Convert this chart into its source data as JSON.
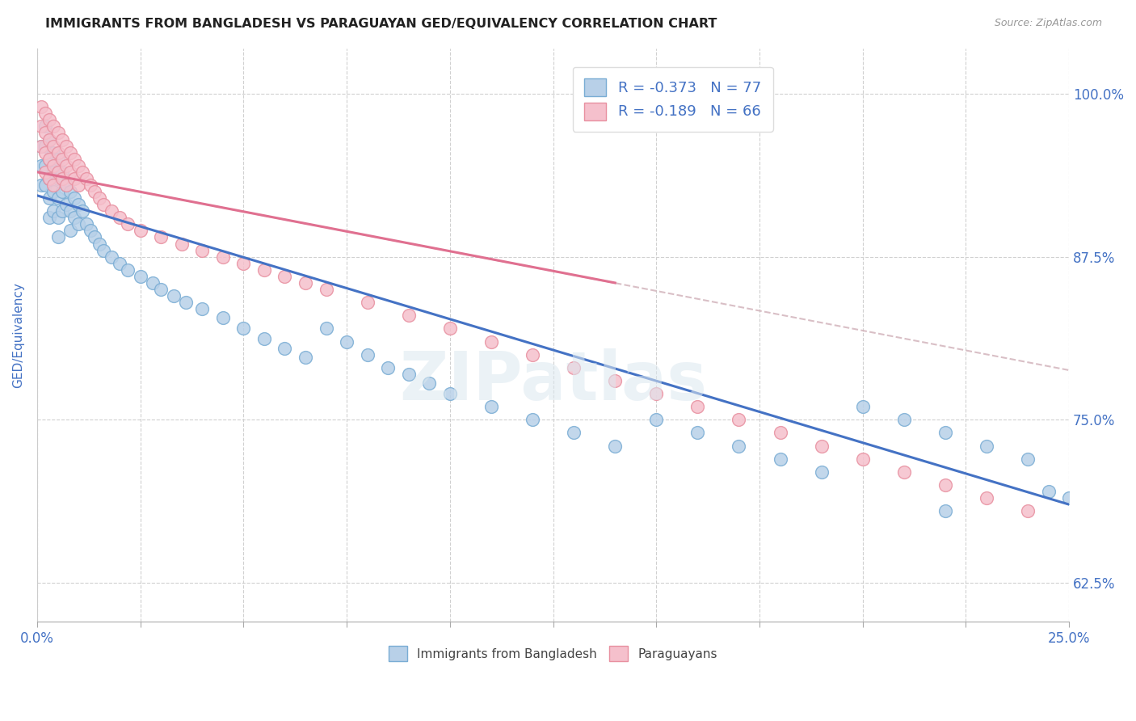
{
  "title": "IMMIGRANTS FROM BANGLADESH VS PARAGUAYAN GED/EQUIVALENCY CORRELATION CHART",
  "source": "Source: ZipAtlas.com",
  "ylabel": "GED/Equivalency",
  "legend_blue_R": "-0.373",
  "legend_blue_N": "77",
  "legend_pink_R": "-0.189",
  "legend_pink_N": "66",
  "legend_label_blue": "Immigrants from Bangladesh",
  "legend_label_pink": "Paraguayans",
  "blue_color": "#b8d0e8",
  "blue_edge": "#7aadd4",
  "pink_color": "#f5c0cc",
  "pink_edge": "#e890a0",
  "blue_line_color": "#4472c4",
  "pink_line_color": "#e07090",
  "dashed_line_color": "#d0b0b8",
  "title_color": "#222222",
  "axis_label_color": "#4472c4",
  "text_color": "#4472c4",
  "xmin": 0.0,
  "xmax": 0.25,
  "ymin": 0.595,
  "ymax": 1.035,
  "blue_scatter_x": [
    0.001,
    0.001,
    0.001,
    0.002,
    0.002,
    0.002,
    0.002,
    0.003,
    0.003,
    0.003,
    0.003,
    0.003,
    0.004,
    0.004,
    0.004,
    0.004,
    0.005,
    0.005,
    0.005,
    0.005,
    0.005,
    0.006,
    0.006,
    0.006,
    0.007,
    0.007,
    0.008,
    0.008,
    0.008,
    0.009,
    0.009,
    0.01,
    0.01,
    0.011,
    0.012,
    0.013,
    0.014,
    0.015,
    0.016,
    0.018,
    0.02,
    0.022,
    0.025,
    0.028,
    0.03,
    0.033,
    0.036,
    0.04,
    0.045,
    0.05,
    0.055,
    0.06,
    0.065,
    0.07,
    0.075,
    0.08,
    0.085,
    0.09,
    0.095,
    0.1,
    0.11,
    0.12,
    0.13,
    0.14,
    0.15,
    0.16,
    0.17,
    0.18,
    0.19,
    0.2,
    0.21,
    0.22,
    0.23,
    0.24,
    0.245,
    0.25,
    0.22
  ],
  "blue_scatter_y": [
    0.96,
    0.945,
    0.93,
    0.975,
    0.96,
    0.945,
    0.93,
    0.965,
    0.95,
    0.935,
    0.92,
    0.905,
    0.955,
    0.94,
    0.925,
    0.91,
    0.95,
    0.935,
    0.92,
    0.905,
    0.89,
    0.94,
    0.925,
    0.91,
    0.93,
    0.915,
    0.925,
    0.91,
    0.895,
    0.92,
    0.905,
    0.915,
    0.9,
    0.91,
    0.9,
    0.895,
    0.89,
    0.885,
    0.88,
    0.875,
    0.87,
    0.865,
    0.86,
    0.855,
    0.85,
    0.845,
    0.84,
    0.835,
    0.828,
    0.82,
    0.812,
    0.805,
    0.798,
    0.82,
    0.81,
    0.8,
    0.79,
    0.785,
    0.778,
    0.77,
    0.76,
    0.75,
    0.74,
    0.73,
    0.75,
    0.74,
    0.73,
    0.72,
    0.71,
    0.76,
    0.75,
    0.74,
    0.73,
    0.72,
    0.695,
    0.69,
    0.68
  ],
  "pink_scatter_x": [
    0.001,
    0.001,
    0.001,
    0.002,
    0.002,
    0.002,
    0.002,
    0.003,
    0.003,
    0.003,
    0.003,
    0.004,
    0.004,
    0.004,
    0.004,
    0.005,
    0.005,
    0.005,
    0.006,
    0.006,
    0.006,
    0.007,
    0.007,
    0.007,
    0.008,
    0.008,
    0.009,
    0.009,
    0.01,
    0.01,
    0.011,
    0.012,
    0.013,
    0.014,
    0.015,
    0.016,
    0.018,
    0.02,
    0.022,
    0.025,
    0.03,
    0.035,
    0.04,
    0.045,
    0.05,
    0.055,
    0.06,
    0.065,
    0.07,
    0.08,
    0.09,
    0.1,
    0.11,
    0.12,
    0.13,
    0.14,
    0.15,
    0.16,
    0.17,
    0.18,
    0.19,
    0.2,
    0.21,
    0.22,
    0.23,
    0.24
  ],
  "pink_scatter_y": [
    0.99,
    0.975,
    0.96,
    0.985,
    0.97,
    0.955,
    0.94,
    0.98,
    0.965,
    0.95,
    0.935,
    0.975,
    0.96,
    0.945,
    0.93,
    0.97,
    0.955,
    0.94,
    0.965,
    0.95,
    0.935,
    0.96,
    0.945,
    0.93,
    0.955,
    0.94,
    0.95,
    0.935,
    0.945,
    0.93,
    0.94,
    0.935,
    0.93,
    0.925,
    0.92,
    0.915,
    0.91,
    0.905,
    0.9,
    0.895,
    0.89,
    0.885,
    0.88,
    0.875,
    0.87,
    0.865,
    0.86,
    0.855,
    0.85,
    0.84,
    0.83,
    0.82,
    0.81,
    0.8,
    0.79,
    0.78,
    0.77,
    0.76,
    0.75,
    0.74,
    0.73,
    0.72,
    0.71,
    0.7,
    0.69,
    0.68
  ],
  "blue_line_x0": 0.0,
  "blue_line_y0": 0.922,
  "blue_line_x1": 0.25,
  "blue_line_y1": 0.685,
  "pink_line_x0": 0.0,
  "pink_line_y0": 0.94,
  "pink_line_x1": 0.14,
  "pink_line_y1": 0.855,
  "dash_line_x0": 0.0,
  "dash_line_y0": 0.94,
  "dash_line_x1": 0.25,
  "dash_line_y1": 0.788
}
